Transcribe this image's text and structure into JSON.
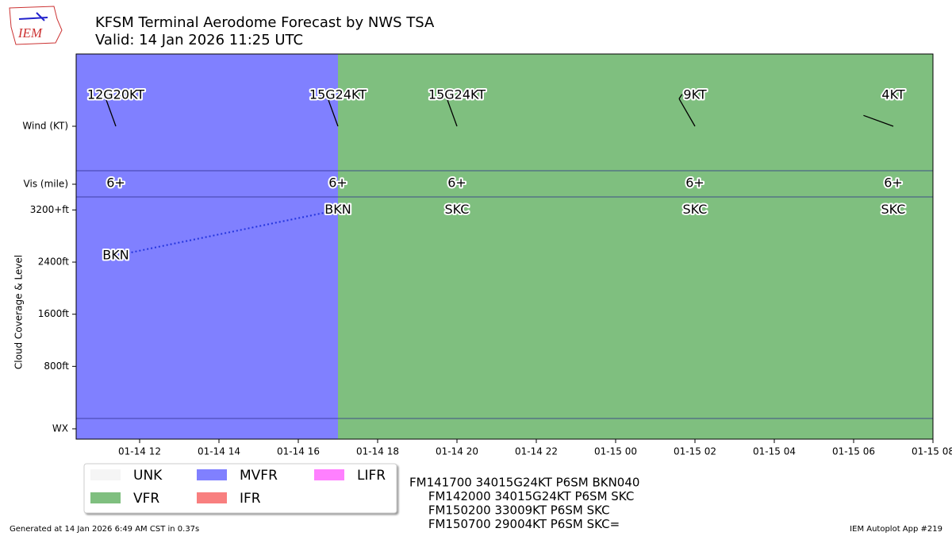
{
  "chart_data": {
    "type": "taf",
    "title": "KFSM Terminal Aerodome Forecast by NWS TSA",
    "subtitle": "Valid: 14 Jan 2026 11:25 UTC",
    "logo": "IEM",
    "y_label": "Cloud Coverage & Level",
    "row_labels": {
      "wind": "Wind (KT)",
      "vis": "Vis (mile)",
      "wx": "WX"
    },
    "x": [
      11.4,
      17,
      20,
      26,
      31
    ],
    "wind_dir": [
      340,
      340,
      340,
      330,
      290
    ],
    "wind_speed": [
      12,
      15,
      15,
      9,
      4
    ],
    "wind_gust": [
      20,
      24,
      24,
      null,
      null
    ],
    "wind_labels": [
      "12G20KT",
      "15G24KT",
      "15G24KT",
      "9KT",
      "4KT"
    ],
    "vis": [
      6,
      6,
      6,
      6,
      6
    ],
    "vis_labels": [
      "6+",
      "6+",
      "6+",
      "6+",
      "6+"
    ],
    "cloud_cover": [
      "BKN",
      "BKN",
      "SKC",
      "SKC",
      "SKC"
    ],
    "cloud_ft": [
      2500,
      3200,
      3200,
      3200,
      3200
    ],
    "spans": [
      {
        "start": 10.4,
        "end": 17,
        "category": "MVFR"
      },
      {
        "start": 17,
        "end": 32,
        "category": "VFR"
      }
    ],
    "xlim": [
      10.4,
      32
    ],
    "xticks": [
      {
        "value": 12,
        "label": "01-14 12"
      },
      {
        "value": 14,
        "label": "01-14 14"
      },
      {
        "value": 16,
        "label": "01-14 16"
      },
      {
        "value": 18,
        "label": "01-14 18"
      },
      {
        "value": 20,
        "label": "01-14 20"
      },
      {
        "value": 22,
        "label": "01-14 22"
      },
      {
        "value": 24,
        "label": "01-15 00"
      },
      {
        "value": 26,
        "label": "01-15 02"
      },
      {
        "value": 28,
        "label": "01-15 04"
      },
      {
        "value": 30,
        "label": "01-15 06"
      },
      {
        "value": 32,
        "label": "01-15 08"
      }
    ],
    "ylim": [
      0,
      3400
    ],
    "yticks": [
      {
        "value": 3200,
        "label": "3200+ft"
      },
      {
        "value": 2400,
        "label": "2400ft"
      },
      {
        "value": 1600,
        "label": "1600ft"
      },
      {
        "value": 800,
        "label": "800ft"
      }
    ],
    "legend": [
      {
        "name": "UNK",
        "color": "#f5f5f5"
      },
      {
        "name": "MVFR",
        "color": "#8080ff"
      },
      {
        "name": "LIFR",
        "color": "#ff80ff"
      },
      {
        "name": "VFR",
        "color": "#7fbf7f"
      },
      {
        "name": "IFR",
        "color": "#f87f7f"
      }
    ],
    "taf_text": [
      "FM141700 34015G24KT P6SM BKN040",
      "     FM142000 34015G24KT P6SM SKC",
      "     FM150200 33009KT P6SM SKC",
      "     FM150700 29004KT P6SM SKC="
    ],
    "footer_left": "Generated at 14 Jan 2026 6:49 AM CST in 0.37s",
    "footer_right": "IEM Autoplot App #219"
  }
}
